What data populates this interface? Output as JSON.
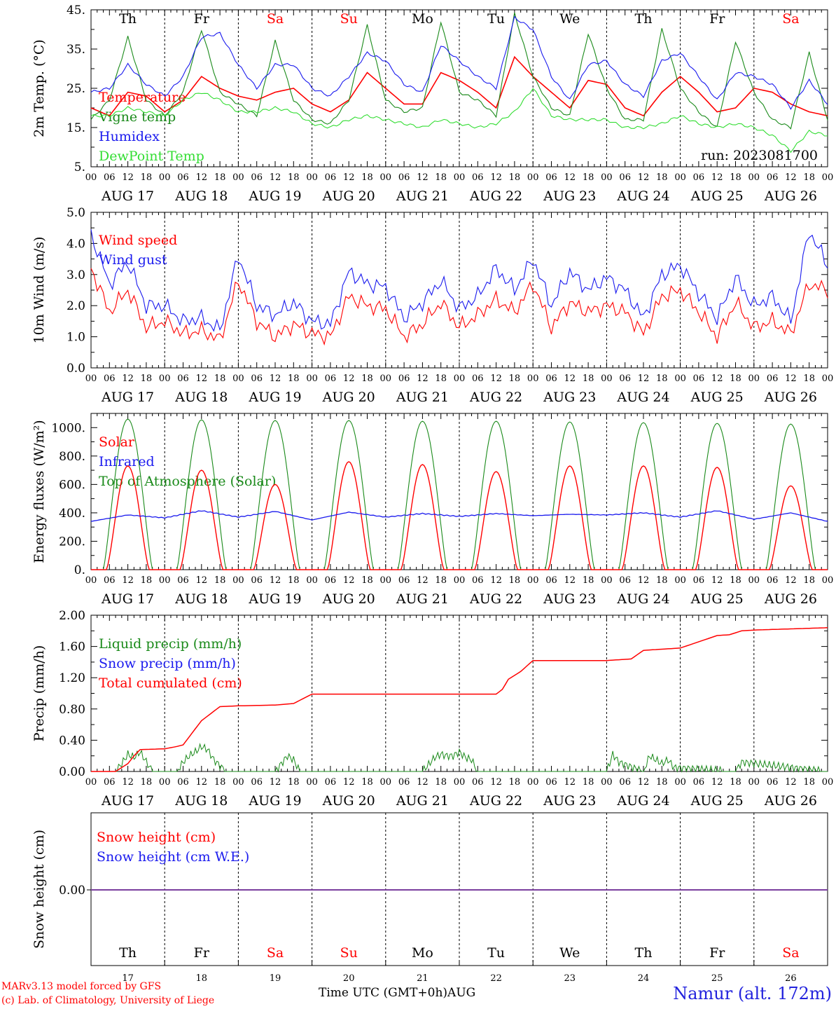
{
  "run_label": "run: 2023081700",
  "days": [
    {
      "dow": "Th",
      "date": "AUG 17",
      "num": "17",
      "weekend": false
    },
    {
      "dow": "Fr",
      "date": "AUG 18",
      "num": "18",
      "weekend": false
    },
    {
      "dow": "Sa",
      "date": "AUG 19",
      "num": "19",
      "weekend": true
    },
    {
      "dow": "Su",
      "date": "AUG 20",
      "num": "20",
      "weekend": true
    },
    {
      "dow": "Mo",
      "date": "AUG 21",
      "num": "21",
      "weekend": false
    },
    {
      "dow": "Tu",
      "date": "AUG 22",
      "num": "22",
      "weekend": false
    },
    {
      "dow": "We",
      "date": "AUG 23",
      "num": "23",
      "weekend": false
    },
    {
      "dow": "Th",
      "date": "AUG 24",
      "num": "24",
      "weekend": false
    },
    {
      "dow": "Fr",
      "date": "AUG 25",
      "num": "25",
      "weekend": false
    },
    {
      "dow": "Sa",
      "date": "AUG 26",
      "num": "26",
      "weekend": true
    }
  ],
  "hour_ticks": [
    "00",
    "06",
    "12",
    "18"
  ],
  "footer": {
    "model": "MARv3.13 model forced by GFS",
    "lab": "(c) Lab. of Climatology, University of Liege",
    "time_label": "Time UTC (GMT+0h)",
    "month": "AUG",
    "site": "Namur (alt. 172m)"
  },
  "colors": {
    "red": "#ff0000",
    "green": "#1a8a1a",
    "blue": "#1a1aee",
    "lightgreen": "#33dd33",
    "purple": "#7b3f9e",
    "weekend": "#ff0000"
  },
  "chart_data": [
    {
      "type": "line",
      "ylabel": "2m Temp. (°C)",
      "ylim": [
        5,
        45
      ],
      "yticks": [
        5,
        15,
        25,
        35,
        45
      ],
      "yticklabels": [
        "5.",
        "15.",
        "25.",
        "35.",
        "45."
      ],
      "x_unit": "hours since AUG 17 00 UTC",
      "x_hours": [
        0,
        6,
        12,
        18,
        24,
        30,
        36,
        42,
        48,
        54,
        60,
        66,
        72,
        78,
        84,
        90,
        96,
        102,
        108,
        114,
        120,
        126,
        132,
        138,
        144,
        150,
        156,
        162,
        168,
        174,
        180,
        186,
        192,
        198,
        204,
        210,
        216,
        222,
        228,
        234,
        240
      ],
      "series": [
        {
          "name": "Temperature",
          "color": "#ff0000",
          "values": [
            20,
            18,
            24,
            23,
            19,
            22,
            28,
            25,
            23,
            22,
            24,
            25,
            21,
            19,
            22,
            29,
            25,
            21,
            21,
            29,
            27,
            24,
            20,
            33,
            28,
            24,
            20,
            27,
            26,
            20,
            18,
            24,
            28,
            24,
            19,
            20,
            25,
            24,
            21,
            19,
            18
          ]
        },
        {
          "name": "Vigne temp",
          "color": "#1a8a1a",
          "values": [
            17,
            22,
            38,
            22,
            18,
            24,
            40,
            24,
            21,
            18,
            37,
            22,
            17,
            16,
            22,
            41,
            22,
            19,
            20,
            42,
            24,
            22,
            18,
            44,
            28,
            20,
            18,
            39,
            25,
            17,
            17,
            40,
            25,
            19,
            15,
            37,
            24,
            17,
            15,
            34,
            17
          ]
        },
        {
          "name": "Humidex",
          "color": "#1a1aee",
          "values": [
            24,
            25,
            31,
            26,
            23,
            28,
            38,
            39,
            31,
            25,
            31,
            31,
            25,
            23,
            28,
            34,
            32,
            26,
            24,
            36,
            32,
            28,
            25,
            43,
            40,
            28,
            22,
            31,
            32,
            26,
            23,
            32,
            34,
            28,
            22,
            29,
            28,
            26,
            20,
            27,
            21
          ]
        },
        {
          "name": "DewPoint Temp",
          "color": "#33dd33",
          "values": [
            18,
            18,
            20,
            19,
            18,
            22,
            24,
            22,
            19,
            19,
            20,
            19,
            16,
            15,
            17,
            18,
            17,
            16,
            15,
            17,
            16,
            15,
            16,
            19,
            25,
            18,
            17,
            17,
            17,
            15,
            15,
            16,
            18,
            16,
            15,
            16,
            15,
            13,
            9,
            14,
            13
          ]
        }
      ]
    },
    {
      "type": "line",
      "ylabel": "10m Wind (m/s)",
      "ylim": [
        0,
        5
      ],
      "yticks": [
        0,
        1,
        2,
        3,
        4,
        5
      ],
      "yticklabels": [
        "0.0",
        "1.0",
        "2.0",
        "3.0",
        "4.0",
        "5.0"
      ],
      "x_hours": [
        0,
        6,
        12,
        18,
        24,
        30,
        36,
        42,
        48,
        54,
        60,
        66,
        72,
        78,
        84,
        90,
        96,
        102,
        108,
        114,
        120,
        126,
        132,
        138,
        144,
        150,
        156,
        162,
        168,
        174,
        180,
        186,
        192,
        198,
        204,
        210,
        216,
        222,
        228,
        234,
        240
      ],
      "series": [
        {
          "name": "Wind speed",
          "color": "#ff0000",
          "values": [
            3.2,
            1.8,
            2.5,
            1.3,
            1.5,
            1.1,
            1.2,
            0.9,
            2.8,
            1.5,
            1.0,
            1.4,
            1.1,
            1.0,
            2.3,
            2.0,
            1.9,
            1.0,
            1.4,
            2.1,
            1.3,
            1.7,
            2.2,
            1.8,
            2.7,
            1.3,
            2.1,
            1.8,
            2.0,
            1.8,
            1.1,
            2.3,
            2.5,
            1.8,
            1.0,
            2.1,
            1.3,
            1.5,
            1.1,
            2.7,
            2.5
          ]
        },
        {
          "name": "Wind gust",
          "color": "#1a1aee",
          "values": [
            4.3,
            2.7,
            3.4,
            2.0,
            2.0,
            1.5,
            1.6,
            1.2,
            3.6,
            2.0,
            1.7,
            2.1,
            1.5,
            1.4,
            3.1,
            2.7,
            2.6,
            1.6,
            2.1,
            2.8,
            1.9,
            2.3,
            3.2,
            2.5,
            3.5,
            2.0,
            3.1,
            2.5,
            2.9,
            2.5,
            1.6,
            3.0,
            3.3,
            2.4,
            1.6,
            2.9,
            2.0,
            2.3,
            1.5,
            4.4,
            3.3
          ]
        }
      ]
    },
    {
      "type": "line",
      "ylabel": "Energy fluxes (W/m²)",
      "ylim": [
        0,
        1100
      ],
      "yticks": [
        0,
        200,
        400,
        600,
        800,
        1000
      ],
      "yticklabels": [
        "0.",
        "200.",
        "400.",
        "600.",
        "800.",
        "1000."
      ],
      "day_peaks": {
        "Solar": [
          730,
          700,
          600,
          760,
          740,
          690,
          730,
          730,
          720,
          590
        ],
        "Top of Atmosphere (Solar)": [
          1060,
          1055,
          1050,
          1050,
          1045,
          1045,
          1040,
          1035,
          1030,
          1025
        ]
      },
      "series": [
        {
          "name": "Solar",
          "color": "#ff0000"
        },
        {
          "name": "Infrared",
          "color": "#1a1aee",
          "values_x_hours": [
            0,
            12,
            24,
            36,
            48,
            60,
            72,
            84,
            96,
            108,
            120,
            132,
            144,
            156,
            168,
            180,
            192,
            204,
            216,
            228,
            240
          ],
          "values": [
            340,
            385,
            365,
            415,
            370,
            410,
            350,
            405,
            370,
            395,
            375,
            395,
            380,
            390,
            385,
            400,
            370,
            415,
            355,
            400,
            340
          ]
        },
        {
          "name": "Top of Atmosphere (Solar)",
          "color": "#1a8a1a"
        }
      ]
    },
    {
      "type": "line",
      "ylabel": "Precip (mm/h)",
      "ylim": [
        0,
        2
      ],
      "yticks": [
        0,
        0.4,
        0.8,
        1.2,
        1.6,
        2.0
      ],
      "yticklabels": [
        "0.00",
        "0.40",
        "0.80",
        "1.20",
        "1.60",
        "2.00"
      ],
      "series": [
        {
          "name": "Liquid precip (mm/h)",
          "color": "#1a8a1a",
          "x_hours": [
            0,
            8,
            10,
            12,
            14,
            16,
            20,
            28,
            30,
            32,
            34,
            36,
            38,
            40,
            44,
            60,
            62,
            64,
            66,
            68,
            108,
            112,
            114,
            116,
            118,
            120,
            122,
            124,
            126,
            168,
            170,
            172,
            180,
            182,
            184,
            186,
            188,
            190,
            210,
            212,
            240
          ],
          "values": [
            0,
            0,
            0.1,
            0.22,
            0.18,
            0.25,
            0,
            0,
            0.12,
            0.2,
            0.25,
            0.32,
            0.28,
            0.15,
            0,
            0,
            0.1,
            0.2,
            0.15,
            0,
            0,
            0.18,
            0.22,
            0.2,
            0.2,
            0.25,
            0.18,
            0.15,
            0,
            0,
            0.22,
            0.12,
            0,
            0.2,
            0.15,
            0.1,
            0.15,
            0.05,
            0,
            0.12,
            0
          ]
        },
        {
          "name": "Snow precip (mm/h)",
          "color": "#1a1aee",
          "values": [
            0
          ]
        },
        {
          "name": "Total cumulated (cm)",
          "color": "#ff0000",
          "x_hours": [
            0,
            8,
            12,
            14,
            16,
            24,
            28,
            30,
            36,
            42,
            48,
            60,
            66,
            72,
            96,
            120,
            132,
            134,
            136,
            140,
            144,
            168,
            176,
            180,
            184,
            192,
            204,
            208,
            212,
            216,
            240
          ],
          "values": [
            0,
            0,
            0.1,
            0.2,
            0.28,
            0.29,
            0.32,
            0.34,
            0.65,
            0.83,
            0.84,
            0.85,
            0.87,
            0.99,
            0.99,
            0.99,
            0.99,
            1.05,
            1.18,
            1.28,
            1.42,
            1.42,
            1.44,
            1.55,
            1.56,
            1.58,
            1.74,
            1.75,
            1.8,
            1.81,
            1.84
          ]
        }
      ]
    },
    {
      "type": "line",
      "ylabel": "Snow height (cm)",
      "yticks": [
        0
      ],
      "yticklabels": [
        "0.00"
      ],
      "series": [
        {
          "name": "Snow height (cm)",
          "color": "#ff0000",
          "values": [
            0
          ]
        },
        {
          "name": "Snow height (cm W.E.)",
          "color": "#1a1aee",
          "values": [
            0
          ]
        }
      ]
    }
  ]
}
